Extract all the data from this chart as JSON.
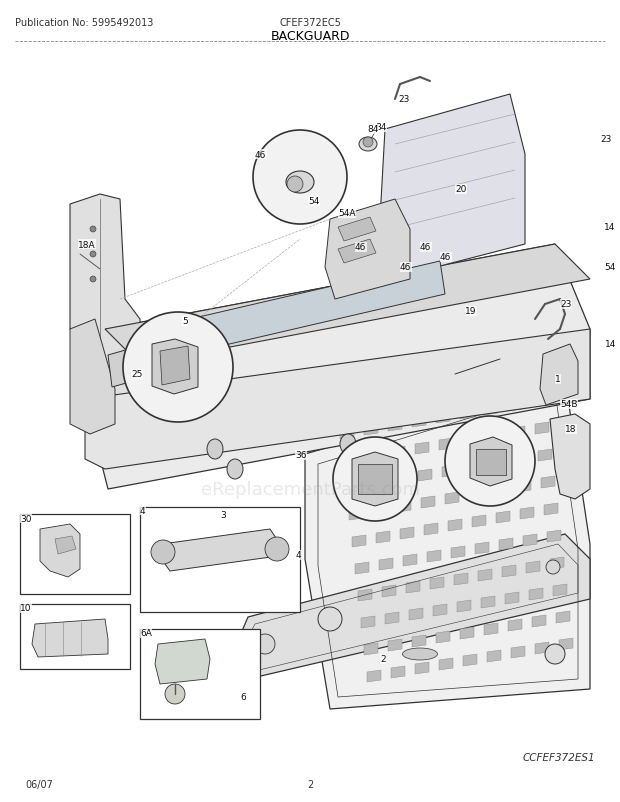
{
  "pub_no": "Publication No: 5995492013",
  "model": "CFEF372EC5",
  "section": "BACKGUARD",
  "diagram_id": "CCFEF372ES1",
  "date": "06/07",
  "page": "2",
  "bg_color": "#ffffff",
  "line_color": "#333333",
  "fill_light": "#e8e8e8",
  "fill_mid": "#cccccc",
  "fill_dark": "#aaaaaa",
  "watermark": "eReplacementParts.com",
  "watermark_alpha": 0.18,
  "watermark_fontsize": 13,
  "header_fontsize": 7,
  "title_fontsize": 9,
  "label_fontsize": 6.5
}
